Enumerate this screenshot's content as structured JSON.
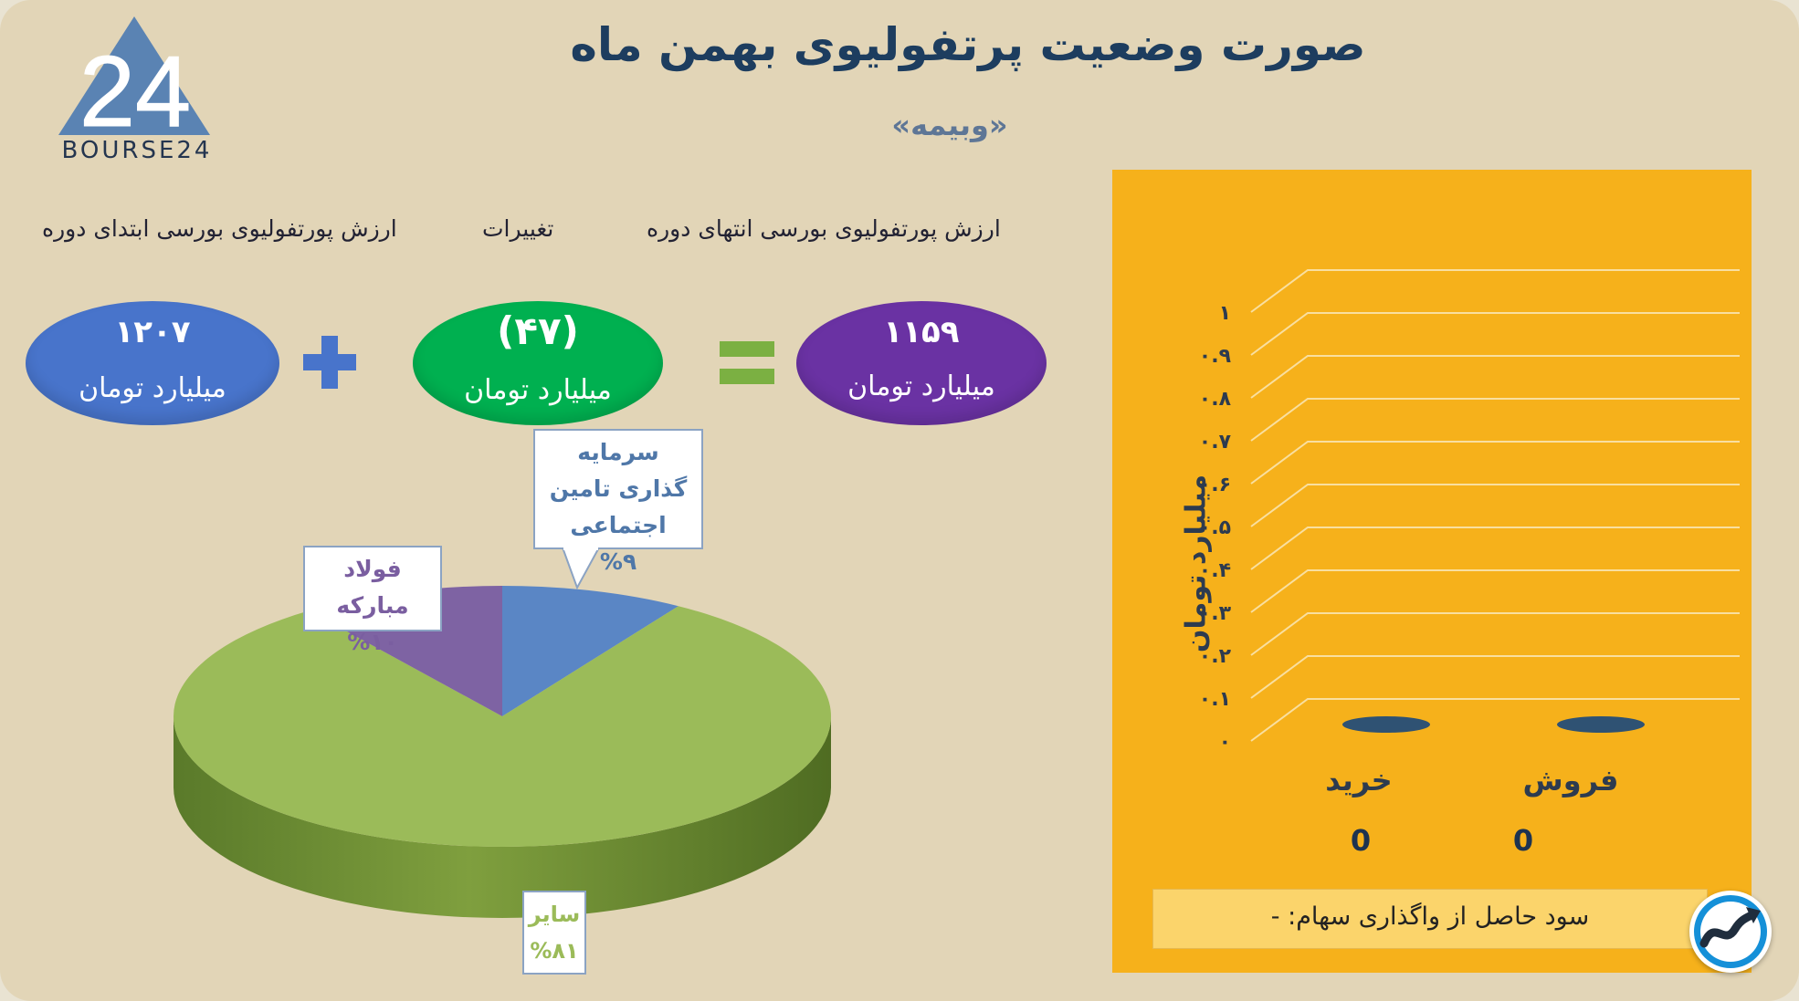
{
  "title": "صورت وضعیت پرتفولیوی بهمن ماه",
  "subtitle": "«وبیمه»",
  "logo": {
    "text": "BOURSE24",
    "mark": "24"
  },
  "summary": {
    "end_label": "ارزش پورتفولیوی بورسی انتهای دوره",
    "change_label": "تغییرات",
    "start_label": "ارزش پورتفولیوی بورسی ابتدای دوره",
    "end_value": "۱۱۵۹",
    "change_value": "(۴۷)",
    "start_value": "۱۲۰۷",
    "unit": "میلیارد تومان",
    "colors": {
      "end": "#6a32a3",
      "change": "#00b050",
      "start": "#4874cb",
      "operator": "#7bb042",
      "plus": "#4874cb"
    }
  },
  "profit_text": "سود حاصل از واگذاری سهام: -",
  "chart_data": [
    {
      "type": "pie",
      "title": "",
      "slices": [
        {
          "label": "سرمایه گذاری تامین اجتماعی",
          "value": 9,
          "label_text": "%۹",
          "color": "#5a86c5"
        },
        {
          "label": "سایر",
          "value": 81,
          "label_text": "%۸۱",
          "color": "#9bbb59"
        },
        {
          "label": "فولاد مبارکه",
          "value": 10,
          "label_text": "%۱۰",
          "color": "#7e63a3"
        }
      ],
      "label_colors": {
        "0": "#4f77a8",
        "1": "#9bbb59",
        "2": "#7a5ea0"
      }
    },
    {
      "type": "bar",
      "title": "",
      "categories": [
        "فروش",
        "خرید"
      ],
      "values": [
        0,
        0
      ],
      "value_labels": [
        "0",
        "0"
      ],
      "ylabel": "میلیارد تومان",
      "ylim": [
        0,
        1
      ],
      "yticks": [
        "۰",
        "۰.۱",
        "۰.۲",
        "۰.۳",
        "۰.۴",
        "۰.۵",
        "۰.۶",
        "۰.۷",
        "۰.۸",
        "۰.۹",
        "۱"
      ],
      "grid": true,
      "bar_color": "#2f5273",
      "background": "#f6b11b"
    }
  ]
}
